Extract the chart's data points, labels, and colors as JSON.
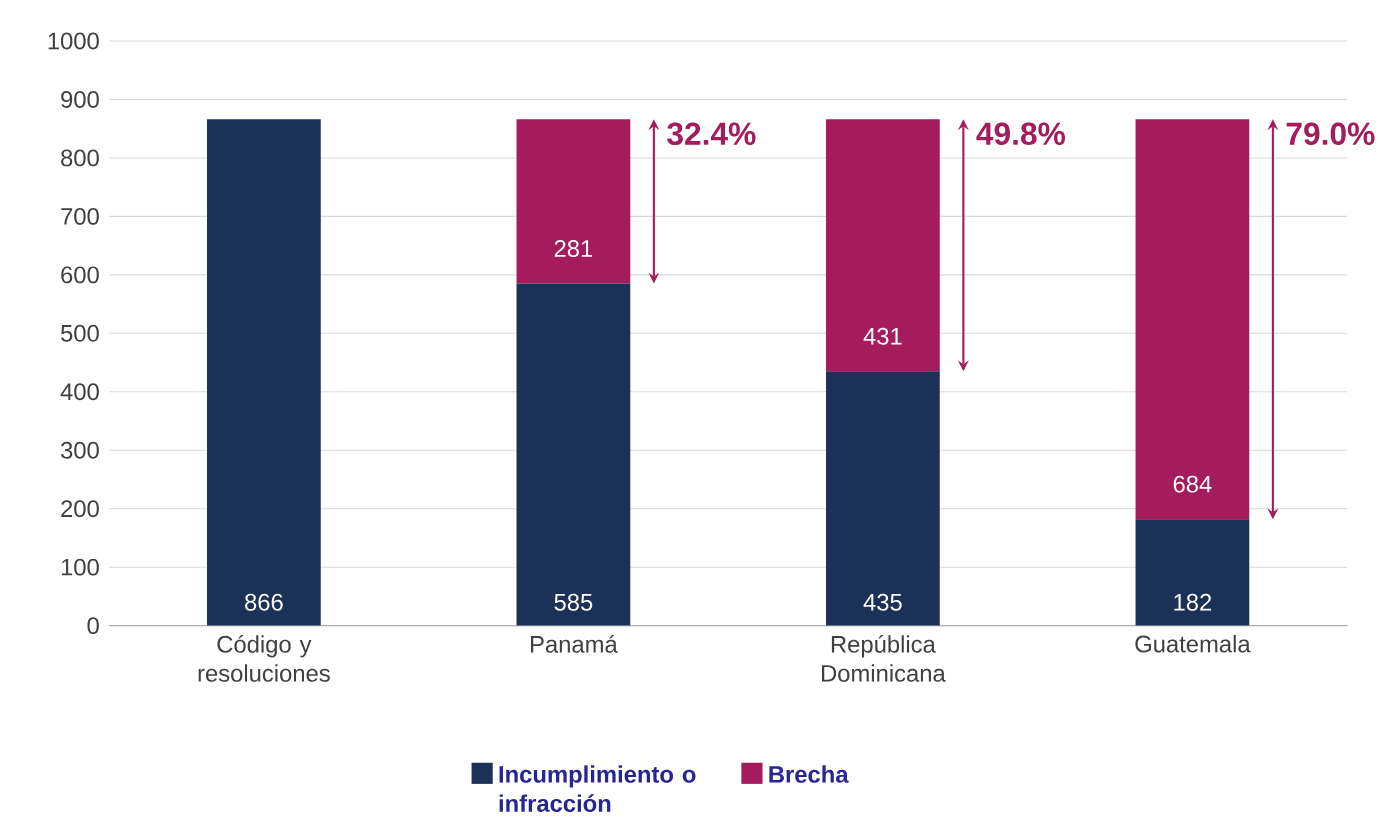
{
  "chart_data": {
    "type": "bar",
    "stacked": true,
    "categories": [
      "Código y resoluciones",
      "Panamá",
      "República Dominicana",
      "Guatemala"
    ],
    "series": [
      {
        "name": "Incumplimiento o infracción",
        "color": "#1c3158",
        "values": [
          866,
          585,
          435,
          182
        ]
      },
      {
        "name": "Brecha",
        "color": "#a51c5c",
        "values": [
          null,
          281,
          431,
          684
        ]
      }
    ],
    "ylim": [
      0,
      1000
    ],
    "yticks": [
      0,
      100,
      200,
      300,
      400,
      500,
      600,
      700,
      800,
      900,
      1000
    ],
    "grid": "y",
    "legend": "bottom",
    "data_labels": true,
    "annotations": [
      {
        "text": "32.4%",
        "x": "Panamá",
        "y": 866
      },
      {
        "text": "49.8%",
        "x": "República Dominicana",
        "y": 866
      },
      {
        "text": "79.0%",
        "x": "Guatemala",
        "y": 866
      }
    ]
  }
}
